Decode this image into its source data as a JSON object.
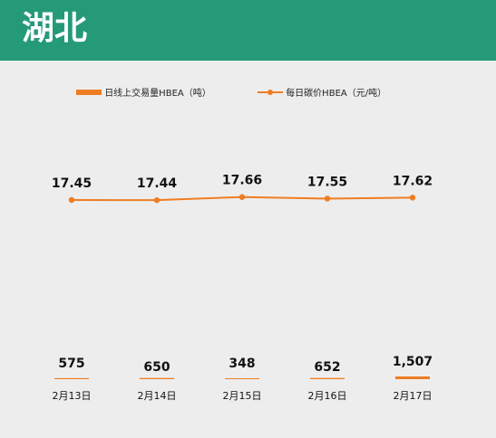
{
  "header": {
    "title": "湖北"
  },
  "colors": {
    "header_bg": "#259a78",
    "series": "#ee7d22"
  },
  "chart_data": {
    "type": "bar+line",
    "categories": [
      "2月13日",
      "2月14日",
      "2月15日",
      "2月16日",
      "2月17日"
    ],
    "series": [
      {
        "name": "日线上交易量HBEA（吨）",
        "type": "bar",
        "values": [
          575,
          650,
          348,
          652,
          1507
        ],
        "labels": [
          "575",
          "650",
          "348",
          "652",
          "1,507"
        ]
      },
      {
        "name": "每日碳价HBEA（元/吨）",
        "type": "line",
        "values": [
          17.45,
          17.44,
          17.66,
          17.55,
          17.62
        ],
        "labels": [
          "17.45",
          "17.44",
          "17.66",
          "17.55",
          "17.62"
        ]
      }
    ],
    "legend": "top",
    "grid": false
  }
}
